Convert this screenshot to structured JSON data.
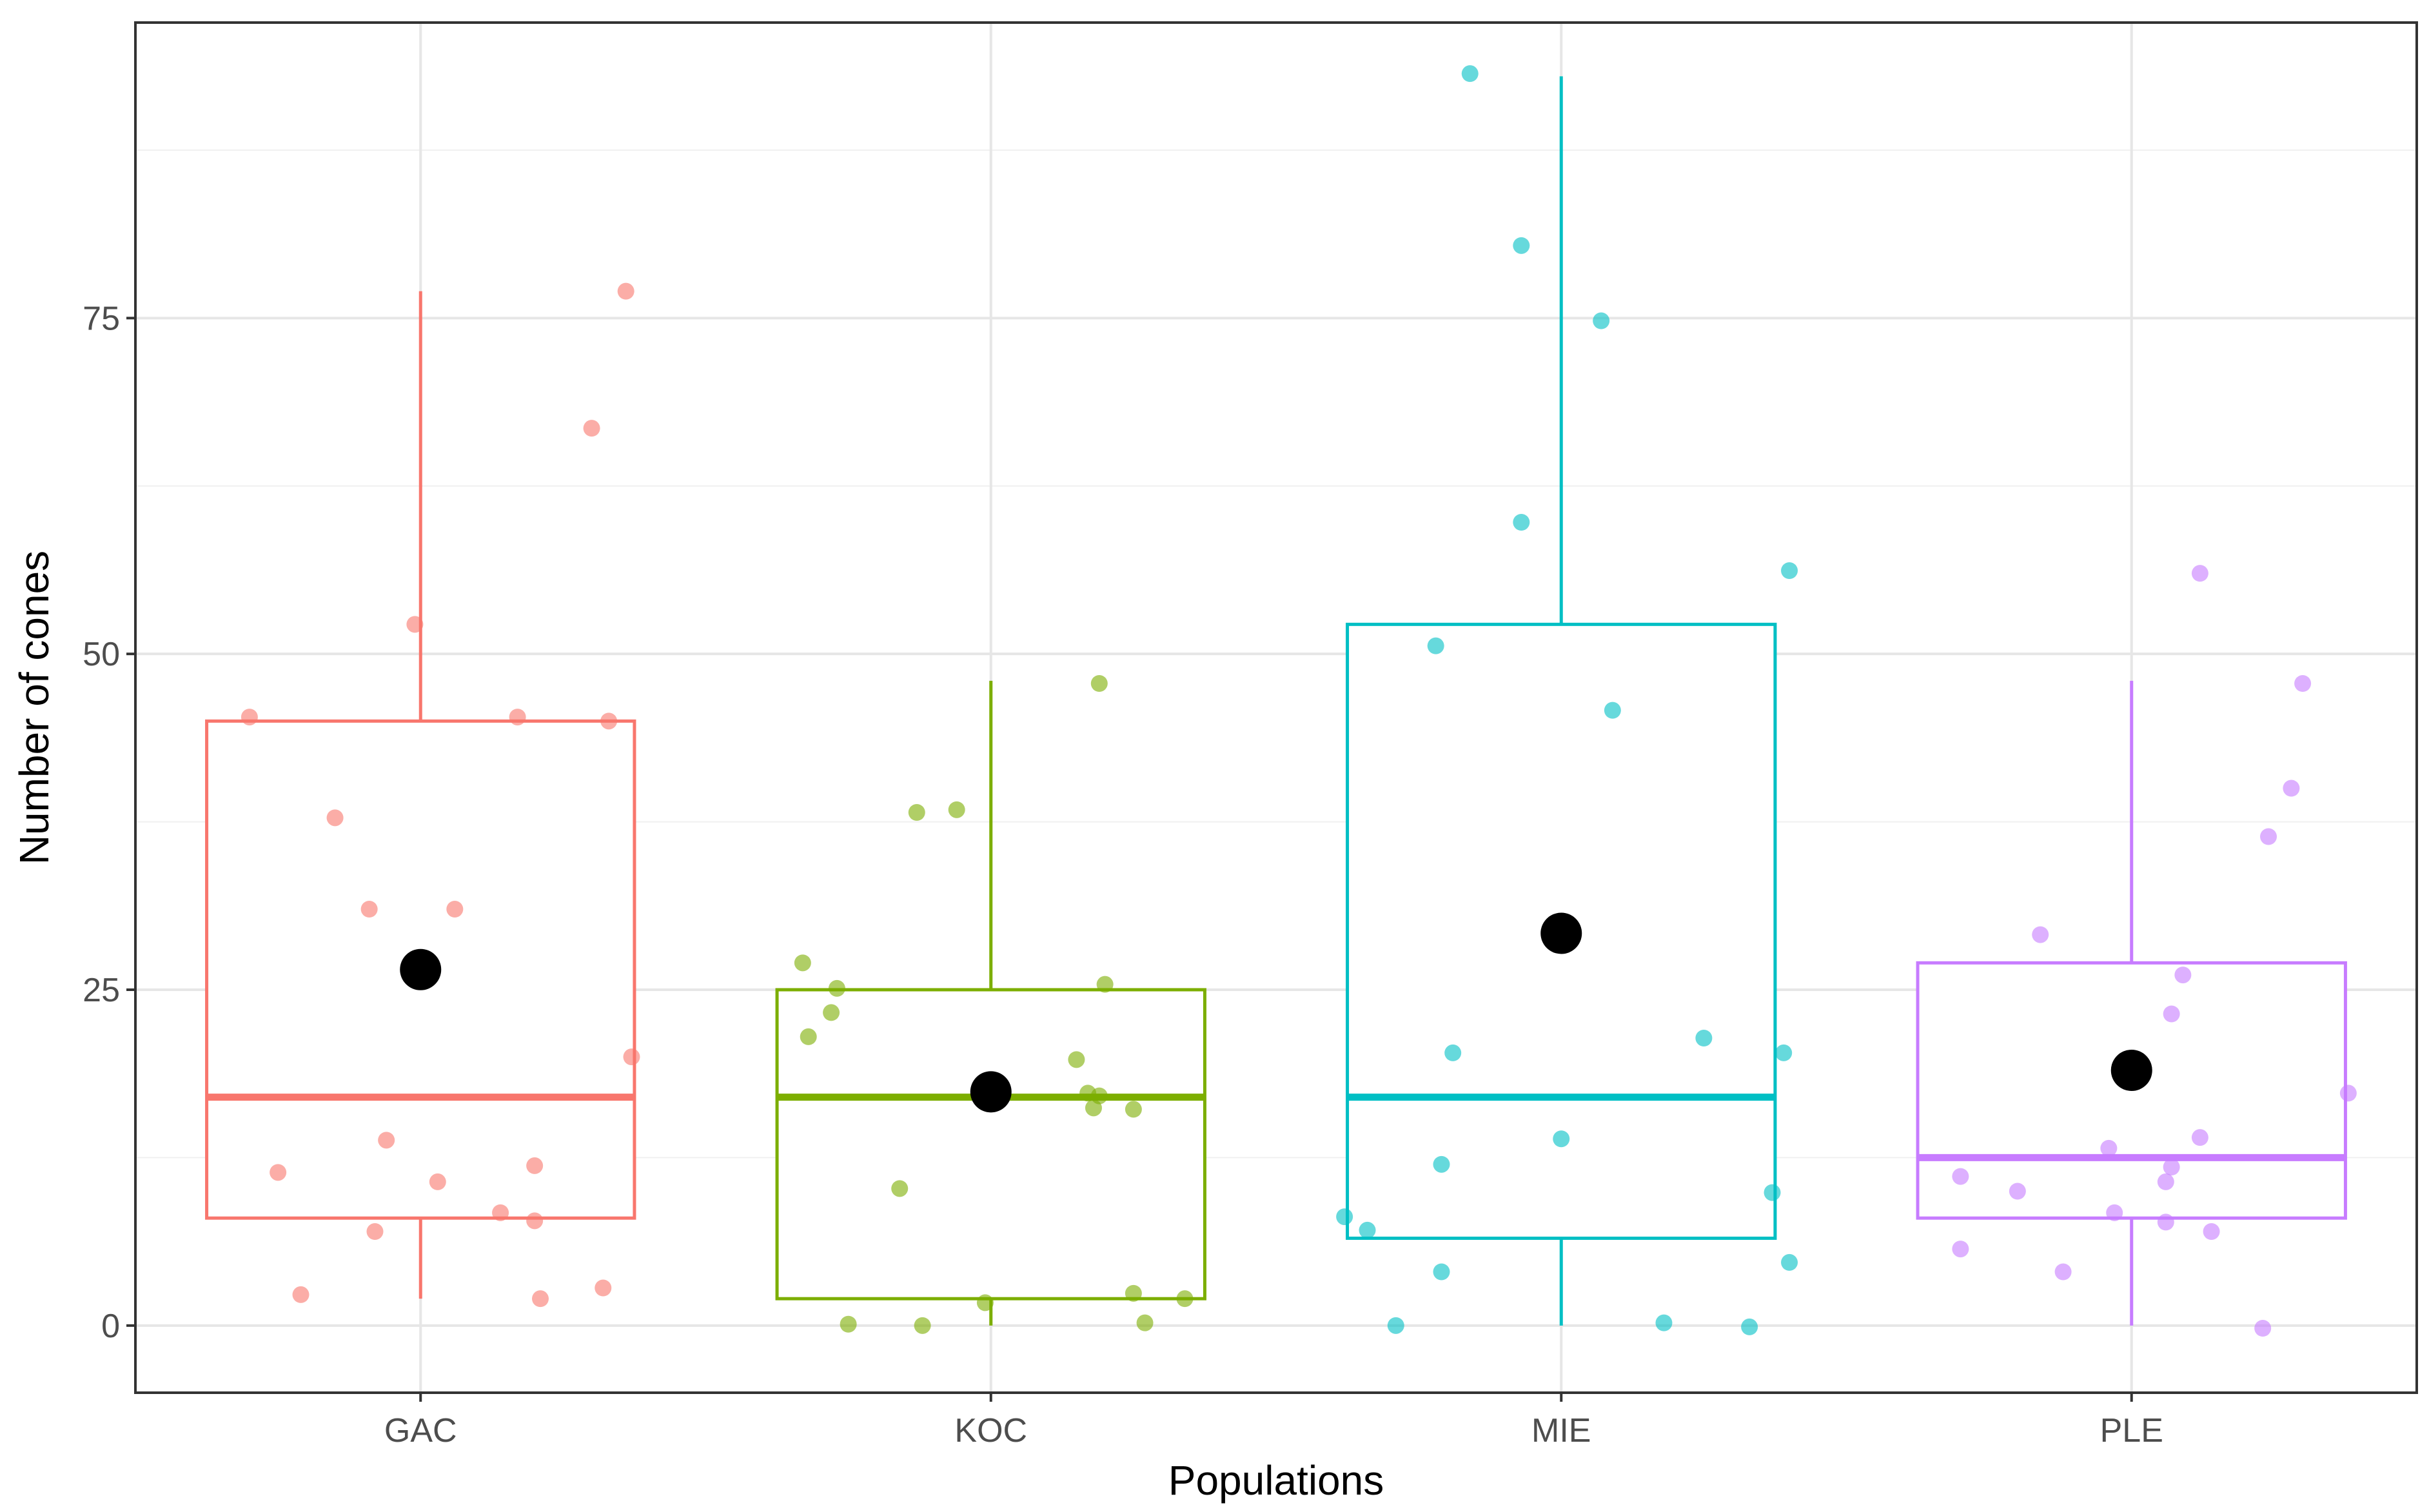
{
  "chart_data": {
    "type": "boxplot",
    "title": "",
    "xlabel": "Populations",
    "ylabel": "Number of cones",
    "ylim": [
      -5,
      97
    ],
    "yticks": [
      0,
      25,
      50,
      75
    ],
    "ytick_labels": [
      "0",
      "25",
      "50",
      "75"
    ],
    "categories": [
      "GAC",
      "KOC",
      "MIE",
      "PLE"
    ],
    "grid": true,
    "legend": "none",
    "colors": [
      "#F8766D",
      "#7CAE00",
      "#00BFC4",
      "#C77CFF"
    ],
    "mean_color": "#000000",
    "series": [
      {
        "name": "GAC",
        "whisker_low": 2,
        "q1": 8,
        "median": 17,
        "q3": 45,
        "whisker_high": 77,
        "mean": 26.5,
        "points": [
          {
            "dx": -0.3,
            "y": 45.3
          },
          {
            "dx": -0.15,
            "y": 37.8
          },
          {
            "dx": -0.09,
            "y": 31
          },
          {
            "dx": 0.06,
            "y": 31
          },
          {
            "dx": -0.01,
            "y": 52.2
          },
          {
            "dx": 0.17,
            "y": 45.3
          },
          {
            "dx": 0.33,
            "y": 45
          },
          {
            "dx": 0.3,
            "y": 66.8
          },
          {
            "dx": 0.36,
            "y": 77
          },
          {
            "dx": 0.37,
            "y": 20
          },
          {
            "dx": -0.25,
            "y": 11.4
          },
          {
            "dx": -0.06,
            "y": 13.8
          },
          {
            "dx": 0.03,
            "y": 10.7
          },
          {
            "dx": 0.2,
            "y": 11.9
          },
          {
            "dx": 0.14,
            "y": 8.4
          },
          {
            "dx": 0.2,
            "y": 7.8
          },
          {
            "dx": -0.08,
            "y": 7
          },
          {
            "dx": -0.21,
            "y": 2.3
          },
          {
            "dx": 0.21,
            "y": 2
          },
          {
            "dx": 0.32,
            "y": 2.8
          }
        ]
      },
      {
        "name": "KOC",
        "whisker_low": 0,
        "q1": 2,
        "median": 17,
        "q3": 25,
        "whisker_high": 48,
        "mean": 17.4,
        "points": [
          {
            "dx": 0.19,
            "y": 47.8
          },
          {
            "dx": -0.13,
            "y": 38.2
          },
          {
            "dx": -0.06,
            "y": 38.4
          },
          {
            "dx": -0.33,
            "y": 27
          },
          {
            "dx": -0.27,
            "y": 25.1
          },
          {
            "dx": -0.28,
            "y": 23.3
          },
          {
            "dx": -0.32,
            "y": 21.5
          },
          {
            "dx": 0.2,
            "y": 25.4
          },
          {
            "dx": 0.15,
            "y": 19.8
          },
          {
            "dx": 0.17,
            "y": 17.3
          },
          {
            "dx": 0.19,
            "y": 17.1
          },
          {
            "dx": 0.18,
            "y": 16.2
          },
          {
            "dx": 0.25,
            "y": 16.1
          },
          {
            "dx": -0.16,
            "y": 10.2
          },
          {
            "dx": 0.25,
            "y": 2.4
          },
          {
            "dx": 0.34,
            "y": 2
          },
          {
            "dx": -0.01,
            "y": 1.7
          },
          {
            "dx": -0.25,
            "y": 0.1
          },
          {
            "dx": -0.12,
            "y": 0
          },
          {
            "dx": 0.27,
            "y": 0.2
          }
        ]
      },
      {
        "name": "MIE",
        "whisker_low": 0,
        "q1": 6.5,
        "median": 17,
        "q3": 52.2,
        "whisker_high": 93,
        "mean": 29.2,
        "points": [
          {
            "dx": -0.16,
            "y": 93.2
          },
          {
            "dx": -0.07,
            "y": 80.4
          },
          {
            "dx": 0.07,
            "y": 74.8
          },
          {
            "dx": -0.07,
            "y": 59.8
          },
          {
            "dx": 0.4,
            "y": 56.2
          },
          {
            "dx": -0.22,
            "y": 50.6
          },
          {
            "dx": 0.09,
            "y": 45.8
          },
          {
            "dx": 0.25,
            "y": 21.4
          },
          {
            "dx": -0.19,
            "y": 20.3
          },
          {
            "dx": 0.39,
            "y": 20.3
          },
          {
            "dx": -0.21,
            "y": 12
          },
          {
            "dx": 0.0,
            "y": 13.9
          },
          {
            "dx": 0.37,
            "y": 9.9
          },
          {
            "dx": -0.38,
            "y": 8.1
          },
          {
            "dx": -0.34,
            "y": 7.1
          },
          {
            "dx": -0.21,
            "y": 4
          },
          {
            "dx": 0.4,
            "y": 4.7
          },
          {
            "dx": -0.29,
            "y": 0
          },
          {
            "dx": 0.18,
            "y": 0.2
          },
          {
            "dx": 0.33,
            "y": -0.1
          }
        ]
      },
      {
        "name": "PLE",
        "whisker_low": 0,
        "q1": 8,
        "median": 12.5,
        "q3": 27,
        "whisker_high": 48,
        "mean": 19,
        "points": [
          {
            "dx": 0.12,
            "y": 56
          },
          {
            "dx": 0.3,
            "y": 47.8
          },
          {
            "dx": 0.28,
            "y": 40
          },
          {
            "dx": 0.24,
            "y": 36.4
          },
          {
            "dx": -0.16,
            "y": 29.1
          },
          {
            "dx": 0.09,
            "y": 26.1
          },
          {
            "dx": 0.07,
            "y": 23.2
          },
          {
            "dx": 0.38,
            "y": 17.3
          },
          {
            "dx": 0.12,
            "y": 14
          },
          {
            "dx": -0.04,
            "y": 13.2
          },
          {
            "dx": 0.07,
            "y": 11.8
          },
          {
            "dx": 0.06,
            "y": 10.7
          },
          {
            "dx": -0.3,
            "y": 11.1
          },
          {
            "dx": -0.2,
            "y": 10
          },
          {
            "dx": -0.03,
            "y": 8.4
          },
          {
            "dx": 0.06,
            "y": 7.7
          },
          {
            "dx": 0.14,
            "y": 7
          },
          {
            "dx": -0.3,
            "y": 5.7
          },
          {
            "dx": -0.12,
            "y": 4
          },
          {
            "dx": 0.23,
            "y": -0.2
          }
        ]
      }
    ]
  }
}
